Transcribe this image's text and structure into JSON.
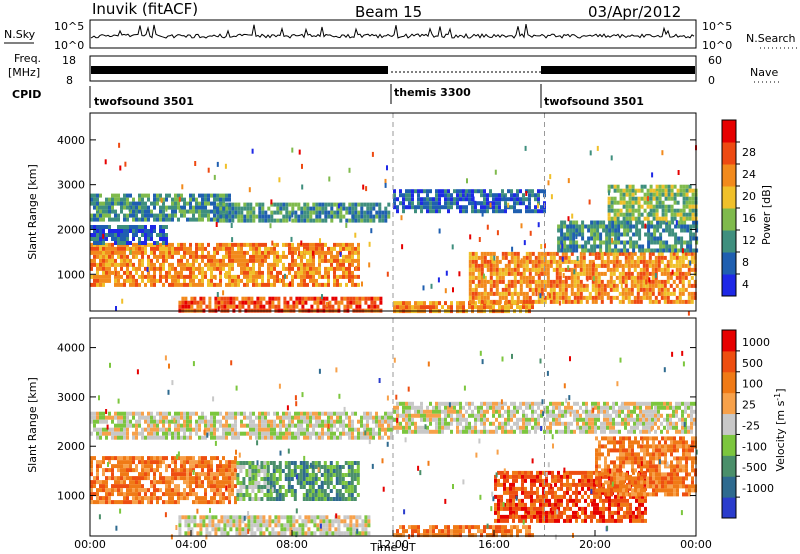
{
  "header": {
    "station": "Inuvik (fitACF)",
    "beam": "Beam 15",
    "date": "03/Apr/2012"
  },
  "status_panels": {
    "nsky_label": "N.Sky",
    "nsky_ticks": [
      "10^5",
      "10^0"
    ],
    "nsearch_label": "N.Search",
    "freq_label": "Freq.",
    "freq_unit": "[MHz]",
    "freq_ticks": [
      "18",
      "8"
    ],
    "nave_ticks": [
      "60",
      "0"
    ],
    "nave_label": "Nave",
    "cpid_label": "CPID",
    "cpid_segments": [
      {
        "name": "twofsound 3501",
        "start_h": 0,
        "end_h": 12
      },
      {
        "name": "themis 3300",
        "start_h": 12,
        "end_h": 18
      },
      {
        "name": "twofsound 3501",
        "start_h": 18,
        "end_h": 24
      }
    ]
  },
  "chart_data": [
    {
      "type": "heatmap",
      "name": "power",
      "ylabel": "Slant Range [km]",
      "xlabel": "Time UT",
      "xlim_hours": [
        0,
        24
      ],
      "ylim_km": [
        180,
        4600
      ],
      "yticks": [
        1000,
        2000,
        3000,
        4000
      ],
      "x_tick_labels": [
        "00:00",
        "04:00",
        "08:00",
        "12:00",
        "16:00",
        "20:00",
        "00:00"
      ],
      "colorbar": {
        "label": "Power [dB]",
        "tick_labels": [
          "4",
          "8",
          "12",
          "16",
          "20",
          "24",
          "28"
        ],
        "colors": [
          "#1e28e6",
          "#1f5fb0",
          "#3f8f7e",
          "#7fba4c",
          "#f0c02a",
          "#f28a1c",
          "#ee4a12",
          "#e60000"
        ]
      },
      "bands": [
        {
          "t0": 0.0,
          "t1": 10.6,
          "r0": 800,
          "r1": 1700,
          "level": 5
        },
        {
          "t0": 0.0,
          "t1": 5.5,
          "r0": 2200,
          "r1": 2800,
          "level": 2
        },
        {
          "t0": 5.0,
          "t1": 11.8,
          "r0": 2200,
          "r1": 2600,
          "level": 2
        },
        {
          "t0": 0.0,
          "t1": 3.0,
          "r0": 1700,
          "r1": 2100,
          "level": 1
        },
        {
          "t0": 3.5,
          "t1": 11.5,
          "r0": 200,
          "r1": 500,
          "level": 6
        },
        {
          "t0": 12.0,
          "t1": 17.5,
          "r0": 200,
          "r1": 400,
          "level": 5
        },
        {
          "t0": 12.0,
          "t1": 18.0,
          "r0": 2400,
          "r1": 2900,
          "level": 1
        },
        {
          "t0": 15.0,
          "t1": 24.0,
          "r0": 400,
          "r1": 1500,
          "level": 5
        },
        {
          "t0": 18.5,
          "t1": 24.0,
          "r0": 1500,
          "r1": 2200,
          "level": 2
        },
        {
          "t0": 20.5,
          "t1": 24.0,
          "r0": 2200,
          "r1": 3000,
          "level": 3
        }
      ]
    },
    {
      "type": "heatmap",
      "name": "velocity",
      "ylabel": "Slant Range [km]",
      "xlabel": "Time UT",
      "xlim_hours": [
        0,
        24
      ],
      "ylim_km": [
        180,
        4600
      ],
      "yticks": [
        1000,
        2000,
        3000,
        4000
      ],
      "x_tick_labels": [
        "00:00",
        "04:00",
        "08:00",
        "12:00",
        "16:00",
        "20:00",
        "00:00"
      ],
      "colorbar": {
        "label": "Velocity [m s^-1]",
        "tick_labels": [
          "1000",
          "500",
          "100",
          "25",
          "-25",
          "-100",
          "-500",
          "-1000"
        ],
        "colors": [
          "#2a3ccc",
          "#2e6a8f",
          "#4a8f6a",
          "#7cc63e",
          "#c8c8c8",
          "#f7a14a",
          "#f07a16",
          "#ee4e10",
          "#e60000"
        ]
      },
      "bands": [
        {
          "t0": 0.0,
          "t1": 5.8,
          "r0": 900,
          "r1": 1800,
          "level": 6
        },
        {
          "t0": 5.8,
          "t1": 7.0,
          "r0": 900,
          "r1": 1700,
          "level": 3
        },
        {
          "t0": 7.0,
          "t1": 10.6,
          "r0": 900,
          "r1": 1700,
          "level": 2
        },
        {
          "t0": 0.0,
          "t1": 12.0,
          "r0": 2200,
          "r1": 2700,
          "level": 4
        },
        {
          "t0": 12.0,
          "t1": 24.0,
          "r0": 2300,
          "r1": 2900,
          "level": 4
        },
        {
          "t0": 3.5,
          "t1": 11.0,
          "r0": 200,
          "r1": 600,
          "level": 4
        },
        {
          "t0": 12.0,
          "t1": 17.5,
          "r0": 200,
          "r1": 400,
          "level": 6
        },
        {
          "t0": 16.0,
          "t1": 22.0,
          "r0": 500,
          "r1": 1500,
          "level": 7
        },
        {
          "t0": 20.0,
          "t1": 24.0,
          "r0": 1000,
          "r1": 2200,
          "level": 6
        }
      ]
    }
  ]
}
